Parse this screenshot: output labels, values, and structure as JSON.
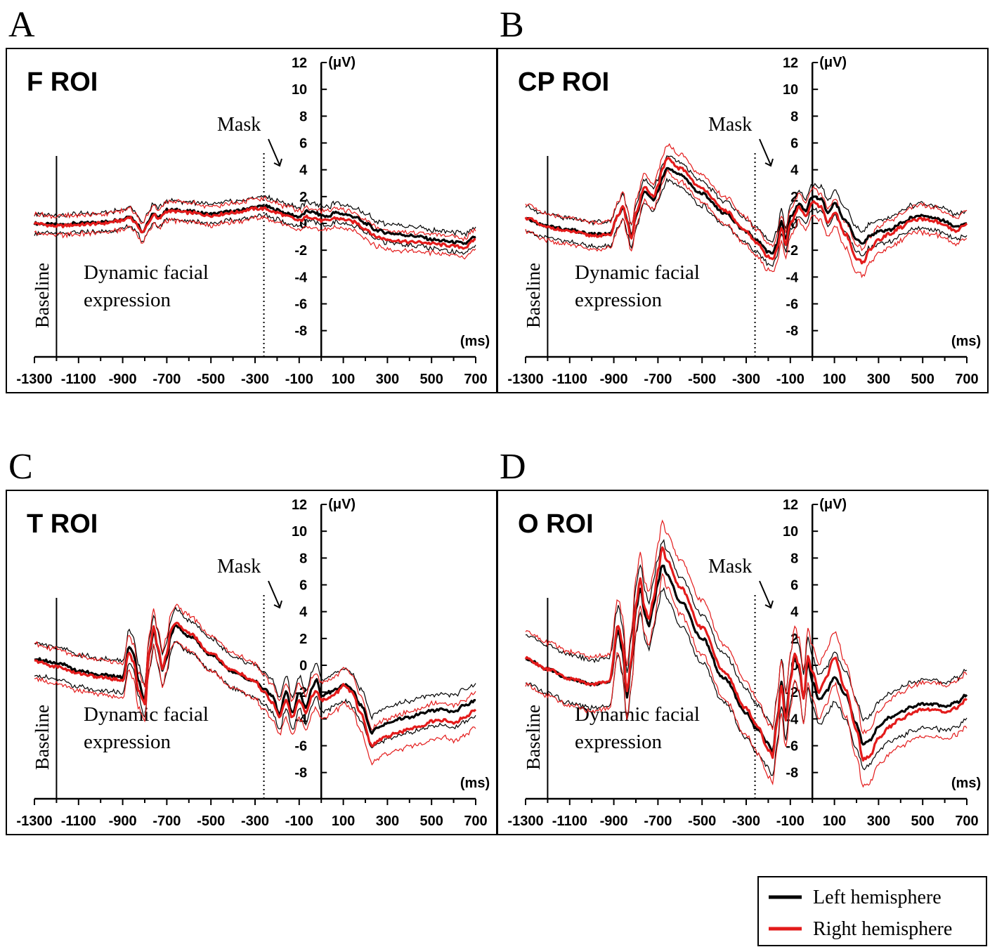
{
  "figure": {
    "x_unit_label": "(ms)",
    "y_unit_label": "(μV)",
    "baseline_label": "Baseline",
    "stimulus_label_line1": "Dynamic facial",
    "stimulus_label_line2": "expression",
    "mask_label": "Mask"
  },
  "legend": {
    "entries": [
      {
        "label": "Left hemisphere",
        "color": "#000000"
      },
      {
        "label": "Right hemisphere",
        "color": "#e31b1b"
      }
    ]
  },
  "colors": {
    "left": "#000000",
    "right": "#e31b1b"
  },
  "chart_data": [
    {
      "type": "line",
      "panel_letter": "A",
      "title": "F ROI",
      "xlim": [
        -1300,
        700
      ],
      "ylim": [
        -8,
        12
      ],
      "x_ticks": [
        -1300,
        -1100,
        -900,
        -700,
        -500,
        -300,
        -100,
        100,
        300,
        500,
        700
      ],
      "y_ticks": [
        -8,
        -6,
        -4,
        -2,
        0,
        2,
        4,
        6,
        8,
        10,
        12
      ],
      "baseline_x": -1200,
      "mask_x": -260,
      "x": [
        -1300,
        -1200,
        -1100,
        -1000,
        -900,
        -870,
        -840,
        -810,
        -780,
        -760,
        -740,
        -700,
        -660,
        -600,
        -500,
        -400,
        -300,
        -260,
        -200,
        -150,
        -100,
        -60,
        -30,
        0,
        30,
        60,
        100,
        150,
        200,
        250,
        300,
        350,
        400,
        450,
        500,
        550,
        600,
        650,
        700
      ],
      "series": [
        {
          "name": "Left hemisphere",
          "color": "#000000",
          "band": 0.7,
          "values": [
            0,
            -0.1,
            0,
            0.1,
            0.3,
            0.6,
            0.1,
            -0.6,
            0.2,
            0.8,
            0.4,
            1.0,
            1.0,
            0.9,
            0.7,
            0.9,
            1.2,
            1.3,
            1.0,
            0.7,
            0.5,
            0.9,
            0.8,
            0.6,
            0.5,
            0.8,
            0.7,
            0.5,
            0.0,
            -0.5,
            -0.7,
            -0.8,
            -0.9,
            -1.0,
            -1.2,
            -1.3,
            -1.4,
            -1.5,
            -1.0
          ]
        },
        {
          "name": "Right hemisphere",
          "color": "#e31b1b",
          "band": 0.7,
          "values": [
            0,
            -0.2,
            -0.1,
            0.0,
            0.2,
            0.5,
            0.0,
            -0.7,
            0.1,
            0.7,
            0.3,
            0.9,
            0.9,
            0.8,
            0.6,
            0.8,
            1.1,
            1.1,
            0.8,
            0.5,
            0.2,
            0.5,
            0.4,
            0.2,
            0.2,
            0.4,
            0.3,
            0.1,
            -0.4,
            -1.0,
            -1.2,
            -1.3,
            -1.4,
            -1.4,
            -1.5,
            -1.6,
            -1.7,
            -1.8,
            -1.2
          ]
        }
      ]
    },
    {
      "type": "line",
      "panel_letter": "B",
      "title": "CP ROI",
      "xlim": [
        -1300,
        700
      ],
      "ylim": [
        -8,
        12
      ],
      "x_ticks": [
        -1300,
        -1100,
        -900,
        -700,
        -500,
        -300,
        -100,
        100,
        300,
        500,
        700
      ],
      "y_ticks": [
        -8,
        -6,
        -4,
        -2,
        0,
        2,
        4,
        6,
        8,
        10,
        12
      ],
      "baseline_x": -1200,
      "mask_x": -260,
      "x": [
        -1300,
        -1200,
        -1100,
        -1000,
        -920,
        -880,
        -860,
        -840,
        -820,
        -800,
        -760,
        -740,
        -720,
        -700,
        -680,
        -660,
        -600,
        -500,
        -400,
        -300,
        -250,
        -200,
        -180,
        -160,
        -140,
        -120,
        -100,
        -60,
        -30,
        0,
        40,
        70,
        100,
        150,
        200,
        230,
        260,
        300,
        350,
        400,
        450,
        500,
        550,
        600,
        650,
        700
      ],
      "series": [
        {
          "name": "Left hemisphere",
          "color": "#000000",
          "band": 0.9,
          "values": [
            0.3,
            -0.2,
            -0.5,
            -0.8,
            -0.8,
            0.5,
            1.2,
            0.3,
            -1.0,
            0.6,
            2.4,
            2.0,
            1.8,
            2.5,
            3.5,
            4.1,
            3.6,
            2.2,
            0.8,
            -0.6,
            -1.3,
            -2.1,
            -2.3,
            -1.5,
            0.1,
            -1.2,
            0.5,
            1.4,
            1.0,
            2.0,
            1.8,
            0.8,
            1.5,
            0.2,
            -1.2,
            -1.5,
            -0.9,
            -0.6,
            -0.5,
            0.0,
            0.4,
            0.6,
            0.4,
            0.2,
            -0.3,
            0.0
          ]
        },
        {
          "name": "Right hemisphere",
          "color": "#e31b1b",
          "band": 1.0,
          "values": [
            0.4,
            -0.3,
            -0.6,
            -0.9,
            -0.9,
            0.6,
            1.3,
            0.2,
            -1.2,
            0.7,
            2.8,
            2.3,
            2.0,
            2.8,
            4.0,
            4.8,
            4.1,
            2.6,
            1.0,
            -0.6,
            -1.5,
            -2.5,
            -2.7,
            -1.8,
            -0.3,
            -1.6,
            0.0,
            1.2,
            0.5,
            1.6,
            1.2,
            0.0,
            0.8,
            -0.8,
            -2.6,
            -2.9,
            -2.0,
            -1.2,
            -0.8,
            -0.3,
            0.2,
            0.3,
            0.2,
            -0.2,
            -0.6,
            0.0
          ]
        }
      ]
    },
    {
      "type": "line",
      "panel_letter": "C",
      "title": "T ROI",
      "xlim": [
        -1300,
        700
      ],
      "ylim": [
        -8,
        12
      ],
      "x_ticks": [
        -1300,
        -1100,
        -900,
        -700,
        -500,
        -300,
        -100,
        100,
        300,
        500,
        700
      ],
      "y_ticks": [
        -8,
        -6,
        -4,
        -2,
        0,
        2,
        4,
        6,
        8,
        10,
        12
      ],
      "baseline_x": -1200,
      "mask_x": -260,
      "x": [
        -1300,
        -1200,
        -1100,
        -1000,
        -900,
        -870,
        -850,
        -830,
        -800,
        -780,
        -760,
        -740,
        -720,
        -700,
        -680,
        -660,
        -600,
        -500,
        -400,
        -300,
        -260,
        -220,
        -190,
        -160,
        -130,
        -100,
        -70,
        -40,
        -20,
        0,
        40,
        70,
        100,
        140,
        180,
        230,
        260,
        300,
        350,
        400,
        450,
        500,
        550,
        600,
        650,
        700
      ],
      "series": [
        {
          "name": "Left hemisphere",
          "color": "#000000",
          "band": 1.2,
          "values": [
            0.5,
            0.2,
            -0.4,
            -0.7,
            -0.9,
            1.4,
            0.8,
            -1.0,
            -2.6,
            0.8,
            2.5,
            1.2,
            -0.3,
            0.5,
            2.4,
            3.0,
            2.2,
            0.8,
            -0.5,
            -1.2,
            -1.8,
            -2.3,
            -3.6,
            -2.0,
            -3.6,
            -2.0,
            -3.2,
            -1.6,
            -1.0,
            -2.3,
            -2.0,
            -1.8,
            -1.4,
            -1.8,
            -3.0,
            -5.0,
            -4.6,
            -4.3,
            -4.0,
            -3.9,
            -3.6,
            -3.4,
            -3.3,
            -3.5,
            -3.0,
            -2.6
          ]
        },
        {
          "name": "Right hemisphere",
          "color": "#e31b1b",
          "band": 1.3,
          "values": [
            0.3,
            -0.1,
            -0.6,
            -0.9,
            -1.1,
            1.0,
            0.2,
            -1.8,
            -2.8,
            1.0,
            2.8,
            1.4,
            -0.2,
            0.8,
            2.7,
            3.2,
            2.4,
            0.9,
            -0.4,
            -1.2,
            -2.0,
            -2.8,
            -3.9,
            -2.6,
            -3.9,
            -2.6,
            -3.5,
            -2.3,
            -1.9,
            -2.6,
            -2.4,
            -2.0,
            -1.5,
            -2.0,
            -3.6,
            -6.0,
            -5.6,
            -5.3,
            -5.0,
            -4.8,
            -4.5,
            -4.2,
            -4.1,
            -4.3,
            -3.9,
            -3.3
          ]
        }
      ]
    },
    {
      "type": "line",
      "panel_letter": "D",
      "title": "O ROI",
      "xlim": [
        -1300,
        700
      ],
      "ylim": [
        -8,
        12
      ],
      "x_ticks": [
        -1300,
        -1100,
        -900,
        -700,
        -500,
        -300,
        -100,
        100,
        300,
        500,
        700
      ],
      "y_ticks": [
        -8,
        -6,
        -4,
        -2,
        0,
        2,
        4,
        6,
        8,
        10,
        12
      ],
      "baseline_x": -1200,
      "mask_x": -260,
      "x": [
        -1300,
        -1200,
        -1100,
        -1000,
        -920,
        -880,
        -860,
        -840,
        -820,
        -800,
        -780,
        -760,
        -740,
        -720,
        -700,
        -680,
        -660,
        -600,
        -500,
        -400,
        -300,
        -250,
        -200,
        -180,
        -160,
        -140,
        -120,
        -100,
        -80,
        -60,
        -40,
        -20,
        0,
        30,
        60,
        100,
        150,
        200,
        230,
        260,
        300,
        350,
        400,
        450,
        500,
        550,
        600,
        650,
        700
      ],
      "series": [
        {
          "name": "Left hemisphere",
          "color": "#000000",
          "band": 1.8,
          "values": [
            0.5,
            -0.3,
            -1.0,
            -1.4,
            -1.2,
            2.5,
            1.0,
            -2.3,
            0.3,
            4.2,
            5.8,
            3.8,
            3.0,
            4.5,
            6.2,
            7.5,
            6.8,
            4.8,
            2.0,
            -1.0,
            -3.5,
            -4.8,
            -5.8,
            -6.5,
            -4.0,
            -1.2,
            -3.8,
            -1.0,
            0.6,
            -0.2,
            -2.5,
            0.2,
            -1.2,
            -2.6,
            -2.0,
            -0.9,
            -2.2,
            -4.4,
            -5.8,
            -5.6,
            -4.6,
            -3.9,
            -3.5,
            -3.1,
            -2.9,
            -2.9,
            -3.1,
            -2.8,
            -2.2
          ]
        },
        {
          "name": "Right hemisphere",
          "color": "#e31b1b",
          "band": 2.0,
          "values": [
            0.5,
            -0.3,
            -1.0,
            -1.4,
            -1.2,
            3.0,
            1.5,
            -2.0,
            0.5,
            4.5,
            6.5,
            4.2,
            3.5,
            5.0,
            7.0,
            8.8,
            7.8,
            5.8,
            2.8,
            -0.5,
            -3.2,
            -4.5,
            -6.3,
            -6.8,
            -4.2,
            -1.5,
            -4.2,
            -1.2,
            0.9,
            0.0,
            -2.4,
            0.6,
            -0.5,
            -2.0,
            -1.0,
            0.6,
            -1.8,
            -4.8,
            -7.0,
            -6.8,
            -5.4,
            -4.6,
            -4.0,
            -3.6,
            -3.3,
            -3.3,
            -3.5,
            -3.2,
            -2.6
          ]
        }
      ]
    }
  ]
}
